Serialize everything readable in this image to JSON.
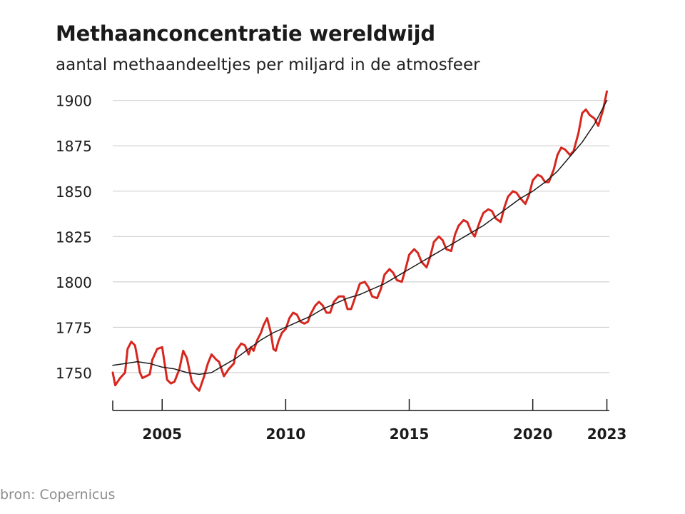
{
  "title": "Methaanconcentratie wereldwijd",
  "subtitle": "aantal methaandeeltjes per miljard in de atmosfeer",
  "source": "bron: Copernicus",
  "colors": {
    "monthly": "#d7261e",
    "trend": "#1a1a1a",
    "grid": "#c8c8c8",
    "axis": "#1a1a1a"
  },
  "chart_data": {
    "type": "line",
    "title": "Methaanconcentratie wereldwijd",
    "subtitle": "aantal methaandeeltjes per miljard in de atmosfeer",
    "xlabel": "",
    "ylabel": "",
    "xlim": [
      2003.0,
      2023.1
    ],
    "ylim": [
      1735,
      1905
    ],
    "yticks": [
      1750,
      1775,
      1800,
      1825,
      1850,
      1875,
      1900
    ],
    "xticks": [
      2005,
      2010,
      2015,
      2020,
      2023
    ],
    "grid": "horizontal",
    "legend": "none",
    "series": [
      {
        "role": "monthly",
        "x": [
          2003.0,
          2003.1,
          2003.3,
          2003.5,
          2003.6,
          2003.75,
          2003.9,
          2004.0,
          2004.1,
          2004.2,
          2004.35,
          2004.5,
          2004.6,
          2004.8,
          2005.0,
          2005.2,
          2005.35,
          2005.5,
          2005.7,
          2005.85,
          2006.0,
          2006.2,
          2006.35,
          2006.5,
          2006.7,
          2006.85,
          2007.0,
          2007.2,
          2007.3,
          2007.5,
          2007.7,
          2007.9,
          2008.0,
          2008.2,
          2008.35,
          2008.5,
          2008.6,
          2008.7,
          2008.85,
          2009.0,
          2009.1,
          2009.25,
          2009.4,
          2009.5,
          2009.6,
          2009.7,
          2009.85,
          2010.0,
          2010.15,
          2010.3,
          2010.45,
          2010.6,
          2010.75,
          2010.9,
          2011.0,
          2011.2,
          2011.35,
          2011.5,
          2011.65,
          2011.8,
          2011.95,
          2012.15,
          2012.35,
          2012.5,
          2012.65,
          2012.85,
          2013.0,
          2013.2,
          2013.35,
          2013.5,
          2013.7,
          2013.85,
          2014.0,
          2014.2,
          2014.35,
          2014.5,
          2014.7,
          2014.85,
          2015.0,
          2015.2,
          2015.35,
          2015.5,
          2015.7,
          2015.85,
          2016.0,
          2016.2,
          2016.35,
          2016.5,
          2016.7,
          2016.85,
          2017.0,
          2017.2,
          2017.35,
          2017.5,
          2017.65,
          2017.85,
          2018.0,
          2018.2,
          2018.35,
          2018.5,
          2018.7,
          2018.85,
          2019.0,
          2019.2,
          2019.35,
          2019.5,
          2019.7,
          2019.85,
          2020.0,
          2020.2,
          2020.35,
          2020.5,
          2020.65,
          2020.85,
          2021.0,
          2021.15,
          2021.3,
          2021.5,
          2021.65,
          2021.85,
          2022.0,
          2022.15,
          2022.3,
          2022.5,
          2022.65,
          2022.85,
          2023.0
        ],
        "y": [
          1750,
          1743,
          1747,
          1750,
          1763,
          1767,
          1765,
          1758,
          1750,
          1747,
          1748,
          1749,
          1757,
          1763,
          1764,
          1746,
          1744,
          1745,
          1752,
          1762,
          1758,
          1745,
          1742,
          1740,
          1748,
          1755,
          1760,
          1757,
          1756,
          1748,
          1752,
          1755,
          1762,
          1766,
          1765,
          1760,
          1764,
          1762,
          1768,
          1772,
          1776,
          1780,
          1772,
          1763,
          1762,
          1767,
          1772,
          1774,
          1780,
          1783,
          1782,
          1778,
          1777,
          1778,
          1782,
          1787,
          1789,
          1787,
          1783,
          1783,
          1789,
          1792,
          1792,
          1785,
          1785,
          1793,
          1799,
          1800,
          1797,
          1792,
          1791,
          1796,
          1804,
          1807,
          1805,
          1801,
          1800,
          1807,
          1815,
          1818,
          1816,
          1811,
          1808,
          1814,
          1822,
          1825,
          1823,
          1818,
          1817,
          1826,
          1831,
          1834,
          1833,
          1828,
          1825,
          1833,
          1838,
          1840,
          1839,
          1835,
          1833,
          1841,
          1847,
          1850,
          1849,
          1846,
          1843,
          1848,
          1856,
          1859,
          1858,
          1855,
          1855,
          1862,
          1870,
          1874,
          1873,
          1870,
          1872,
          1882,
          1893,
          1895,
          1892,
          1890,
          1886,
          1895,
          1905
        ]
      },
      {
        "role": "trend",
        "x": [
          2003.0,
          2003.5,
          2004.0,
          2004.5,
          2005.0,
          2005.5,
          2006.0,
          2006.5,
          2007.0,
          2007.5,
          2008.0,
          2008.5,
          2009.0,
          2009.5,
          2010.0,
          2010.5,
          2011.0,
          2011.5,
          2012.0,
          2012.5,
          2013.0,
          2013.5,
          2014.0,
          2014.5,
          2015.0,
          2015.5,
          2016.0,
          2016.5,
          2017.0,
          2017.5,
          2018.0,
          2018.5,
          2019.0,
          2019.5,
          2020.0,
          2020.5,
          2021.0,
          2021.5,
          2022.0,
          2022.5,
          2023.0
        ],
        "y": [
          1754,
          1755,
          1756,
          1755,
          1753,
          1752,
          1750,
          1749,
          1750,
          1754,
          1758,
          1763,
          1768,
          1772,
          1775,
          1778,
          1781,
          1785,
          1788,
          1791,
          1793,
          1796,
          1799,
          1803,
          1807,
          1811,
          1815,
          1819,
          1823,
          1827,
          1831,
          1836,
          1841,
          1846,
          1850,
          1855,
          1861,
          1869,
          1877,
          1887,
          1900
        ]
      }
    ]
  }
}
